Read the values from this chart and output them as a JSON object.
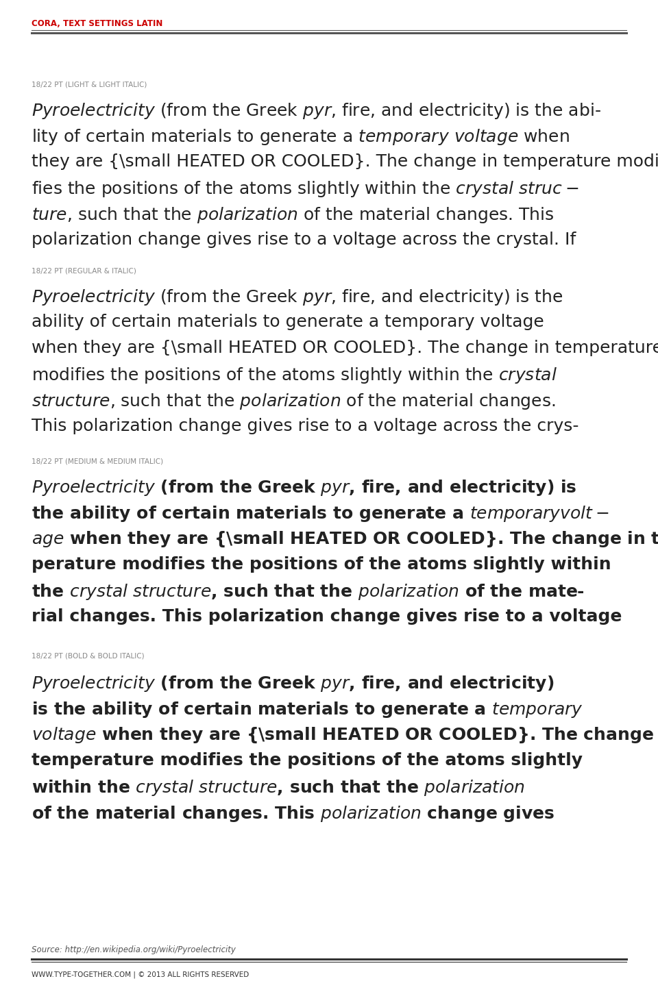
{
  "bg_color": "#ffffff",
  "header_text": "CORA, TEXT SETTINGS LATIN",
  "header_color": "#cc0000",
  "header_line_color": "#555555",
  "section1_label": "18/22 PT (LIGHT & LIGHT ITALIC)",
  "section2_label": "18/22 PT (REGULAR & ITALIC)",
  "section3_label": "18/22 PT (MEDIUM & MEDIUM ITALIC)",
  "section4_label": "18/22 PT (BOLD & BOLD ITALIC)",
  "label_color": "#888888",
  "text_color": "#222222",
  "footer_source": "Source: http://en.wikipedia.org/wiki/Pyroelectricity",
  "footer_copy": "WWW.TYPE-TOGETHER.COM | © 2013 ALL RIGHTS RESERVED",
  "footer_color": "#555555",
  "pyro_text_s1": "Pyroelectricity (from the Greek pyr, fire, and electricity) is the ability of certain materials to generate a temporary voltage when they are HEATED OR COOLED. The change in temperature modifies the positions of the atoms slightly within the crystal structure, such that the polarization of the material changes. This polarization change gives rise to a voltage across the crystal. If",
  "pyro_text_s2": "Pyroelectricity (from the Greek pyr, fire, and electricity) is the ability of certain materials to generate a temporary voltage when they are HEATED OR COOLED. The change in temperature modifies the positions of the atoms slightly within the crystal structure, such that the polarization of the material changes. This polarization change gives rise to a voltage across the crys-",
  "pyro_text_s3": "Pyroelectricity (from the Greek pyr, fire, and electricity) is the ability of certain materials to generate a temporary voltage when they are HEATED OR COOLED. The change in temperature modifies the positions of the atoms slightly within the crystal structure, such that the polarization of the material changes. This polarization change gives rise to a voltage",
  "pyro_text_s4": "Pyroelectricity (from the Greek pyr, fire, and electricity) is the ability of certain materials to generate a temporary voltage when they are HEATED OR COOLED. The change in temperature modifies the positions of the atoms slightly within the crystal structure, such that the polarization of the material changes. This polarization change gives"
}
